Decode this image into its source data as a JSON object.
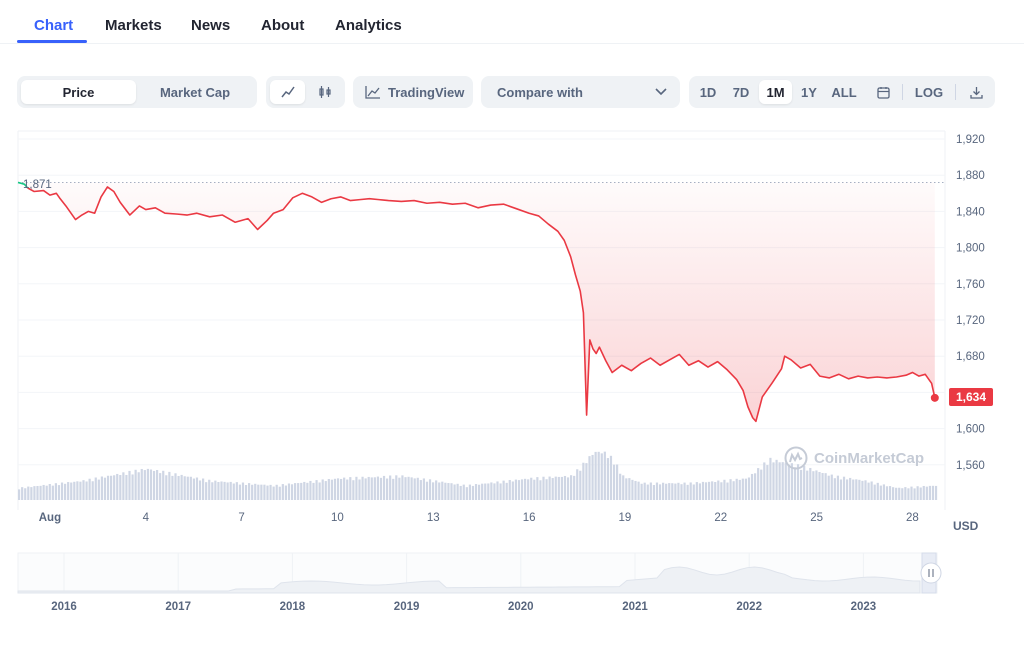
{
  "tabs": [
    {
      "label": "Chart",
      "active": true
    },
    {
      "label": "Markets"
    },
    {
      "label": "News"
    },
    {
      "label": "About"
    },
    {
      "label": "Analytics"
    }
  ],
  "toolbar": {
    "type_toggle": [
      "Price",
      "Market Cap"
    ],
    "type_selected": "Price",
    "chart_style_icons": [
      "line-chart-icon",
      "candlestick-icon"
    ],
    "tradingview_label": "TradingView",
    "compare_placeholder": "Compare with",
    "ranges": [
      "1D",
      "7D",
      "1M",
      "1Y",
      "ALL"
    ],
    "range_selected": "1M",
    "log_label": "LOG",
    "icons": [
      "calendar-icon",
      "download-icon"
    ]
  },
  "chart": {
    "start_price_label": "1,871",
    "current_price_label": "1,634",
    "currency_label": "USD",
    "watermark": "CoinMarketCap",
    "colors": {
      "down": "#ea3943",
      "up": "#16c784",
      "volume": "#cfd6e4",
      "accent": "#3861fb"
    }
  },
  "chart_data": {
    "type": "area",
    "ylim": [
      1540,
      1920
    ],
    "y_ticks": [
      "1,920",
      "1,880",
      "1,840",
      "1,800",
      "1,760",
      "1,720",
      "1,680",
      "1,640",
      "1,600",
      "1,560"
    ],
    "y_tick_values": [
      1920,
      1880,
      1840,
      1800,
      1760,
      1720,
      1680,
      1640,
      1600,
      1560
    ],
    "x_ticks": [
      "Aug",
      "4",
      "7",
      "10",
      "13",
      "16",
      "19",
      "22",
      "25",
      "28"
    ],
    "x_tick_days": [
      1,
      4,
      7,
      10,
      13,
      16,
      19,
      22,
      25,
      28
    ],
    "x_range_days": [
      0.0,
      28.8
    ],
    "series": [
      {
        "x": [
          0.0,
          0.2,
          0.3,
          0.5,
          0.8,
          1.0,
          1.2,
          1.3,
          1.5,
          1.8,
          2.0,
          2.2,
          2.4,
          2.6,
          2.8,
          3.0,
          3.2,
          3.5,
          3.8,
          4.0,
          4.3,
          4.6,
          5.0,
          5.3,
          5.6,
          6.0,
          6.4,
          6.8,
          7.2,
          7.5,
          7.8,
          8.0,
          8.3,
          8.6,
          8.9,
          9.2,
          9.5,
          9.8,
          10.1,
          10.4,
          10.7,
          11.0,
          11.3,
          11.6,
          12.0,
          12.4,
          12.8,
          13.2,
          13.6,
          14.0,
          14.4,
          14.8,
          15.2,
          15.6,
          16.0,
          16.3,
          16.6,
          16.9,
          17.1,
          17.3,
          17.45,
          17.6,
          17.7,
          17.8,
          17.9,
          18.0,
          18.1,
          18.2,
          18.4,
          18.6,
          18.9,
          19.2,
          19.5,
          19.8,
          20.1,
          20.4,
          20.7,
          21.0,
          21.3,
          21.6,
          21.9,
          22.2,
          22.5,
          22.7,
          22.85,
          23.0,
          23.1,
          23.3,
          23.6,
          23.9,
          24.0,
          24.2,
          24.5,
          24.8,
          25.1,
          25.4,
          25.7,
          26.0,
          26.3,
          26.6,
          26.9,
          27.2,
          27.5,
          27.8,
          28.0,
          28.2,
          28.4,
          28.6,
          28.7
        ],
        "y": [
          1872,
          1870,
          1866,
          1862,
          1863,
          1858,
          1860,
          1855,
          1846,
          1831,
          1836,
          1840,
          1838,
          1856,
          1867,
          1862,
          1850,
          1836,
          1846,
          1842,
          1844,
          1838,
          1837,
          1836,
          1838,
          1834,
          1836,
          1828,
          1832,
          1820,
          1830,
          1838,
          1842,
          1855,
          1860,
          1856,
          1850,
          1854,
          1856,
          1852,
          1853,
          1854,
          1853,
          1852,
          1851,
          1852,
          1849,
          1850,
          1848,
          1849,
          1844,
          1847,
          1848,
          1843,
          1838,
          1835,
          1826,
          1818,
          1808,
          1790,
          1770,
          1752,
          1728,
          1615,
          1698,
          1688,
          1683,
          1690,
          1675,
          1662,
          1670,
          1664,
          1672,
          1678,
          1670,
          1676,
          1682,
          1670,
          1675,
          1668,
          1674,
          1665,
          1654,
          1642,
          1624,
          1612,
          1608,
          1635,
          1650,
          1666,
          1680,
          1676,
          1667,
          1671,
          1658,
          1656,
          1660,
          1655,
          1658,
          1656,
          1657,
          1656,
          1657,
          1659,
          1662,
          1658,
          1660,
          1650,
          1634
        ]
      }
    ],
    "volume_series": {
      "x": [
        0,
        2,
        4,
        6,
        8,
        10,
        12,
        14,
        16,
        17.3,
        17.6,
        18.0,
        18.3,
        18.6,
        18.9,
        19.5,
        21,
        22,
        22.8,
        23.5,
        24.5,
        25.5,
        26.5,
        27.5,
        28.7
      ],
      "values": [
        0.25,
        0.4,
        0.65,
        0.4,
        0.3,
        0.45,
        0.5,
        0.3,
        0.45,
        0.5,
        0.7,
        1.0,
        1.0,
        0.85,
        0.5,
        0.35,
        0.35,
        0.4,
        0.45,
        0.85,
        0.7,
        0.5,
        0.4,
        0.25,
        0.3
      ]
    },
    "navigator": {
      "years": [
        "2016",
        "2017",
        "2018",
        "2019",
        "2020",
        "2021",
        "2022",
        "2023"
      ]
    }
  }
}
